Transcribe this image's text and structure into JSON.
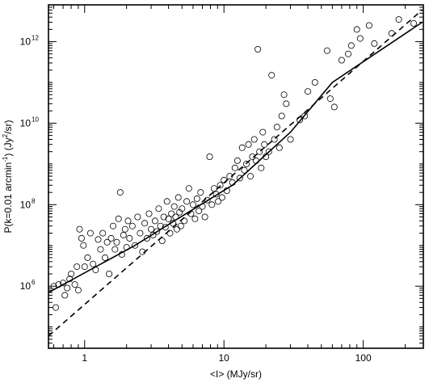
{
  "chart_data": {
    "type": "scatter",
    "title": "",
    "xlabel": "<I> (MJy/sr)",
    "ylabel_parts": {
      "pre": "P(k=0.01 arcmin",
      "sup1": "-1",
      "mid": ") (Jy",
      "sup2": "2",
      "post": "/sr)"
    },
    "xscale": "log",
    "yscale": "log",
    "xlim": [
      0.55,
      270
    ],
    "ylim": [
      30000,
      8000000000000
    ],
    "x_ticks": [
      {
        "value": 1,
        "label": "1"
      },
      {
        "value": 10,
        "label": "10"
      },
      {
        "value": 100,
        "label": "100"
      }
    ],
    "y_ticks": [
      {
        "value": 1000000,
        "base": "10",
        "exp": "6"
      },
      {
        "value": 100000000,
        "base": "10",
        "exp": "8"
      },
      {
        "value": 10000000000,
        "base": "10",
        "exp": "10"
      },
      {
        "value": 1000000000000,
        "base": "10",
        "exp": "12"
      }
    ],
    "grid": false,
    "legend": "none",
    "colors": {
      "axes": "#000000",
      "markers": "#000000",
      "background": "#ffffff"
    },
    "fit_lines": [
      {
        "style": "solid",
        "points": [
          [
            0.55,
            700000
          ],
          [
            2.3,
            10000000
          ],
          [
            4.4,
            40000000
          ],
          [
            11.5,
            300000000
          ],
          [
            30,
            6000000000
          ],
          [
            60,
            100000000000
          ],
          [
            265,
            3000000000000
          ]
        ]
      },
      {
        "style": "dashed",
        "points": [
          [
            0.55,
            60000
          ],
          [
            265,
            6000000000000
          ]
        ]
      }
    ],
    "points": [
      [
        0.6,
        1000000.0
      ],
      [
        0.62,
        300000.0
      ],
      [
        0.65,
        1100000.0
      ],
      [
        0.7,
        1200000.0
      ],
      [
        0.72,
        600000.0
      ],
      [
        0.75,
        900000.0
      ],
      [
        0.78,
        1500000.0
      ],
      [
        0.8,
        2000000.0
      ],
      [
        0.85,
        1100000.0
      ],
      [
        0.88,
        3000000.0
      ],
      [
        0.9,
        800000.0
      ],
      [
        0.92,
        25000000.0
      ],
      [
        0.95,
        15000000.0
      ],
      [
        0.98,
        10000000.0
      ],
      [
        1.0,
        3000000.0
      ],
      [
        1.05,
        5000000.0
      ],
      [
        1.1,
        20000000.0
      ],
      [
        1.15,
        3500000.0
      ],
      [
        1.2,
        2500000.0
      ],
      [
        1.25,
        14000000.0
      ],
      [
        1.3,
        8000000.0
      ],
      [
        1.35,
        20000000.0
      ],
      [
        1.4,
        5000000.0
      ],
      [
        1.45,
        12000000.0
      ],
      [
        1.5,
        2000000.0
      ],
      [
        1.55,
        15000000.0
      ],
      [
        1.6,
        30000000.0
      ],
      [
        1.65,
        8000000.0
      ],
      [
        1.7,
        12000000.0
      ],
      [
        1.75,
        45000000.0
      ],
      [
        1.8,
        200000000.0
      ],
      [
        1.85,
        6000000.0
      ],
      [
        1.9,
        18000000.0
      ],
      [
        1.95,
        25000000.0
      ],
      [
        2.0,
        9000000.0
      ],
      [
        2.05,
        40000000.0
      ],
      [
        2.1,
        15000000.0
      ],
      [
        2.2,
        30000000.0
      ],
      [
        2.3,
        10000000.0
      ],
      [
        2.4,
        50000000.0
      ],
      [
        2.5,
        20000000.0
      ],
      [
        2.6,
        7000000.0
      ],
      [
        2.7,
        35000000.0
      ],
      [
        2.8,
        15000000.0
      ],
      [
        2.9,
        60000000.0
      ],
      [
        3.0,
        25000000.0
      ],
      [
        3.1,
        18000000.0
      ],
      [
        3.2,
        40000000.0
      ],
      [
        3.3,
        22000000.0
      ],
      [
        3.4,
        80000000.0
      ],
      [
        3.5,
        30000000.0
      ],
      [
        3.6,
        13000000.0
      ],
      [
        3.7,
        50000000.0
      ],
      [
        3.8,
        28000000.0
      ],
      [
        3.9,
        120000000.0
      ],
      [
        4.0,
        45000000.0
      ],
      [
        4.1,
        20000000.0
      ],
      [
        4.2,
        60000000.0
      ],
      [
        4.3,
        35000000.0
      ],
      [
        4.4,
        90000000.0
      ],
      [
        4.5,
        50000000.0
      ],
      [
        4.6,
        25000000.0
      ],
      [
        4.7,
        150000000.0
      ],
      [
        4.8,
        65000000.0
      ],
      [
        4.9,
        30000000.0
      ],
      [
        5.0,
        80000000.0
      ],
      [
        5.2,
        40000000.0
      ],
      [
        5.4,
        120000000.0
      ],
      [
        5.6,
        250000000.0
      ],
      [
        5.8,
        60000000.0
      ],
      [
        6.0,
        100000000.0
      ],
      [
        6.2,
        45000000.0
      ],
      [
        6.4,
        140000000.0
      ],
      [
        6.6,
        70000000.0
      ],
      [
        6.8,
        200000000.0
      ],
      [
        7.0,
        90000000.0
      ],
      [
        7.3,
        50000000.0
      ],
      [
        7.6,
        130000000.0
      ],
      [
        7.9,
        1500000000.0
      ],
      [
        8.2,
        100000000.0
      ],
      [
        8.5,
        250000000.0
      ],
      [
        8.8,
        180000000.0
      ],
      [
        9.1,
        120000000.0
      ],
      [
        9.4,
        300000000.0
      ],
      [
        9.7,
        150000000.0
      ],
      [
        10.0,
        400000000.0
      ],
      [
        10.5,
        220000000.0
      ],
      [
        11.0,
        500000000.0
      ],
      [
        11.5,
        350000000.0
      ],
      [
        12.0,
        800000000.0
      ],
      [
        12.5,
        1200000000.0
      ],
      [
        13.0,
        450000000.0
      ],
      [
        13.5,
        2500000000.0
      ],
      [
        14.0,
        700000000.0
      ],
      [
        14.5,
        1000000000.0
      ],
      [
        15.0,
        3000000000.0
      ],
      [
        15.5,
        500000000.0
      ],
      [
        16.0,
        1500000000.0
      ],
      [
        16.5,
        4000000000.0
      ],
      [
        17.0,
        1200000000.0
      ],
      [
        17.5,
        650000000000.0
      ],
      [
        18.0,
        2000000000.0
      ],
      [
        18.5,
        800000000.0
      ],
      [
        19.0,
        6000000000.0
      ],
      [
        19.5,
        3000000000.0
      ],
      [
        20.0,
        1500000000.0
      ],
      [
        21.0,
        2000000000.0
      ],
      [
        22.0,
        150000000000.0
      ],
      [
        23.0,
        4000000000.0
      ],
      [
        24.0,
        8000000000.0
      ],
      [
        25.0,
        2500000000.0
      ],
      [
        26.0,
        15000000000.0
      ],
      [
        27.0,
        50000000000.0
      ],
      [
        28.0,
        30000000000.0
      ],
      [
        30.0,
        4000000000.0
      ],
      [
        35.0,
        12000000000.0
      ],
      [
        38.0,
        15000000000.0
      ],
      [
        40.0,
        60000000000.0
      ],
      [
        45.0,
        100000000000.0
      ],
      [
        55.0,
        600000000000.0
      ],
      [
        58.0,
        40000000000.0
      ],
      [
        62.0,
        25000000000.0
      ],
      [
        70.0,
        350000000000.0
      ],
      [
        78.0,
        500000000000.0
      ],
      [
        82.0,
        800000000000.0
      ],
      [
        90.0,
        2000000000000.0
      ],
      [
        95.0,
        1200000000000.0
      ],
      [
        110.0,
        2500000000000.0
      ],
      [
        120.0,
        900000000000.0
      ],
      [
        160.0,
        1600000000000.0
      ],
      [
        180.0,
        3500000000000.0
      ],
      [
        230.0,
        2800000000000.0
      ]
    ]
  }
}
